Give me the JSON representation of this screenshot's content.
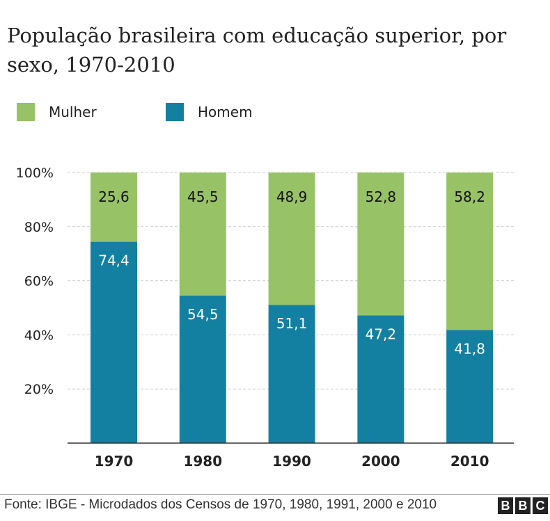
{
  "chart_data": {
    "type": "bar",
    "stacked": true,
    "title": "População brasileira com educação superior, por sexo, 1970-2010",
    "categories": [
      "1970",
      "1980",
      "1990",
      "2000",
      "2010"
    ],
    "series": [
      {
        "name": "Homem",
        "color": "#1380a1",
        "values": [
          74.4,
          54.5,
          51.1,
          47.2,
          41.8
        ],
        "labels": [
          "74,4",
          "54,5",
          "51,1",
          "47,2",
          "41,8"
        ]
      },
      {
        "name": "Mulher",
        "color": "#98c266",
        "values": [
          25.6,
          45.5,
          48.9,
          52.8,
          58.2
        ],
        "labels": [
          "25,6",
          "45,5",
          "48,9",
          "52,8",
          "58,2"
        ]
      }
    ],
    "ylim": [
      0,
      100
    ],
    "yticks": [
      20,
      40,
      60,
      80,
      100
    ],
    "ytick_labels": [
      "20%",
      "40%",
      "60%",
      "80%",
      "100%"
    ],
    "grid": true,
    "legend_placement": "top-left"
  },
  "legend": {
    "mulher": "Mulher",
    "homem": "Homem"
  },
  "source": "Fonte:  IBGE - Microdados dos Censos de 1970, 1980, 1991, 2000 e 2010",
  "logo": [
    "B",
    "B",
    "C"
  ]
}
